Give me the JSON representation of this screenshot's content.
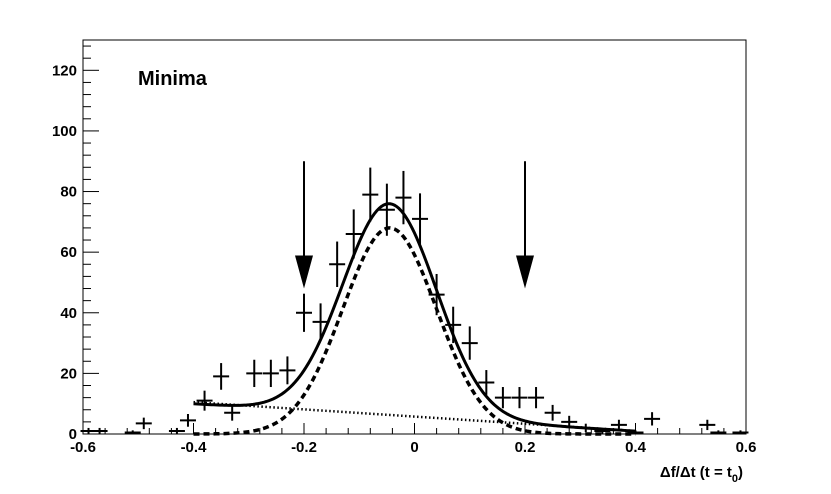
{
  "chart_data": {
    "type": "scatter",
    "title": "Minima",
    "xlabel": "Δf/Δt (t = t0)",
    "xlabel_parts": {
      "main": "Δf/Δt (t = t",
      "sub": "0",
      "close": ")"
    },
    "ylabel": "",
    "xlim": [
      -0.6,
      0.6
    ],
    "ylim": [
      0,
      130
    ],
    "x_ticks": [
      {
        "value": -0.6,
        "label": "-0.6"
      },
      {
        "value": -0.4,
        "label": "-0.4"
      },
      {
        "value": -0.2,
        "label": "-0.2"
      },
      {
        "value": 0,
        "label": "0"
      },
      {
        "value": 0.2,
        "label": "0.2"
      },
      {
        "value": 0.4,
        "label": "0.4"
      },
      {
        "value": 0.6,
        "label": "0.6"
      }
    ],
    "y_ticks": [
      {
        "value": 0,
        "label": "0"
      },
      {
        "value": 20,
        "label": "20"
      },
      {
        "value": 40,
        "label": "40"
      },
      {
        "value": 60,
        "label": "60"
      },
      {
        "value": 80,
        "label": "80"
      },
      {
        "value": 100,
        "label": "100"
      },
      {
        "value": 120,
        "label": "120"
      }
    ],
    "grid": false,
    "data_points": [
      {
        "x": -0.59,
        "y": 1,
        "err": 1.0
      },
      {
        "x": -0.57,
        "y": 1,
        "err": 1.0
      },
      {
        "x": -0.51,
        "y": 0.5,
        "err": 0.7
      },
      {
        "x": -0.49,
        "y": 3.5,
        "err": 1.9
      },
      {
        "x": -0.43,
        "y": 1,
        "err": 1.0
      },
      {
        "x": -0.41,
        "y": 4.5,
        "err": 2.1
      },
      {
        "x": -0.38,
        "y": 11,
        "err": 3.3
      },
      {
        "x": -0.35,
        "y": 19,
        "err": 4.4
      },
      {
        "x": -0.33,
        "y": 7,
        "err": 2.6
      },
      {
        "x": -0.29,
        "y": 20,
        "err": 4.5
      },
      {
        "x": -0.26,
        "y": 20,
        "err": 4.5
      },
      {
        "x": -0.23,
        "y": 21,
        "err": 4.6
      },
      {
        "x": -0.2,
        "y": 40,
        "err": 6.3
      },
      {
        "x": -0.17,
        "y": 37,
        "err": 6.1
      },
      {
        "x": -0.14,
        "y": 56,
        "err": 7.5
      },
      {
        "x": -0.11,
        "y": 66,
        "err": 8.1
      },
      {
        "x": -0.08,
        "y": 79,
        "err": 8.9
      },
      {
        "x": -0.05,
        "y": 74,
        "err": 8.6
      },
      {
        "x": -0.02,
        "y": 78,
        "err": 8.8
      },
      {
        "x": 0.01,
        "y": 71,
        "err": 8.4
      },
      {
        "x": 0.04,
        "y": 46,
        "err": 6.8
      },
      {
        "x": 0.07,
        "y": 36,
        "err": 6.0
      },
      {
        "x": 0.1,
        "y": 30,
        "err": 5.5
      },
      {
        "x": 0.13,
        "y": 17,
        "err": 4.1
      },
      {
        "x": 0.16,
        "y": 12,
        "err": 3.5
      },
      {
        "x": 0.19,
        "y": 12,
        "err": 3.5
      },
      {
        "x": 0.22,
        "y": 12,
        "err": 3.5
      },
      {
        "x": 0.25,
        "y": 7,
        "err": 2.6
      },
      {
        "x": 0.28,
        "y": 4,
        "err": 2.0
      },
      {
        "x": 0.31,
        "y": 2,
        "err": 1.4
      },
      {
        "x": 0.34,
        "y": 1,
        "err": 1.0
      },
      {
        "x": 0.37,
        "y": 3,
        "err": 1.7
      },
      {
        "x": 0.4,
        "y": 0.5,
        "err": 0.7
      },
      {
        "x": 0.43,
        "y": 5,
        "err": 2.2
      },
      {
        "x": 0.53,
        "y": 3,
        "err": 1.7
      },
      {
        "x": 0.55,
        "y": 0.5,
        "err": 0.7
      },
      {
        "x": 0.59,
        "y": 0.5,
        "err": 0.7
      }
    ],
    "fit_total": {
      "style": "solid",
      "gaussian": {
        "amplitude": 70,
        "mean": -0.045,
        "sigma": 0.085
      },
      "background": {
        "intercept": 7.0,
        "slope": -14
      },
      "x_range": [
        -0.4,
        0.4
      ]
    },
    "fit_signal": {
      "style": "dashed",
      "gaussian": {
        "amplitude": 68,
        "mean": -0.045,
        "sigma": 0.085
      },
      "x_range": [
        -0.4,
        0.4
      ]
    },
    "fit_background": {
      "style": "dotted",
      "intercept": 7.0,
      "slope": -14,
      "x_range": [
        -0.4,
        0.4
      ]
    },
    "markers": [
      {
        "type": "arrow-down",
        "x": -0.2,
        "y_top": 90,
        "y_tip": 48
      },
      {
        "type": "arrow-down",
        "x": 0.2,
        "y_top": 90,
        "y_tip": 48
      }
    ]
  }
}
